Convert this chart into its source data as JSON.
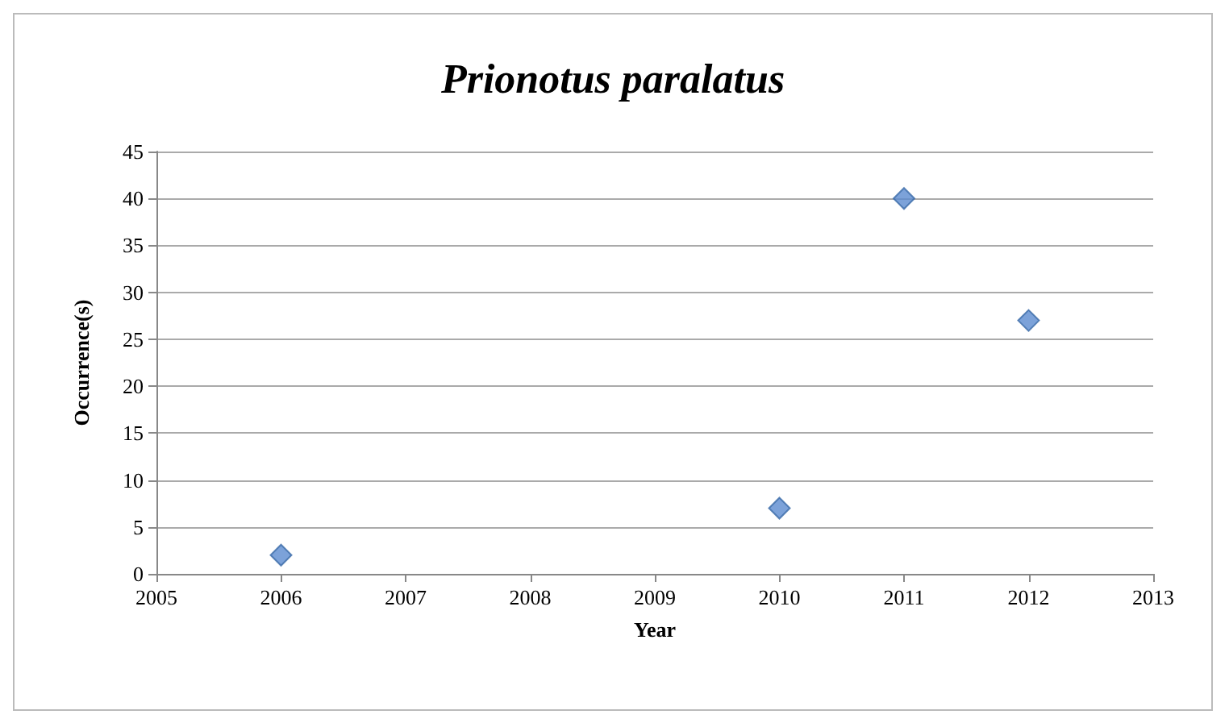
{
  "chart_data": {
    "type": "scatter",
    "title": "Prionotus paralatus",
    "xlabel": "Year",
    "ylabel": "Occurrence(s)",
    "x": [
      2006,
      2010,
      2011,
      2012
    ],
    "series": [
      {
        "color": "#5b8bd0",
        "values": [
          2,
          7,
          40,
          27
        ]
      }
    ],
    "xlim": [
      2005,
      2013
    ],
    "xticks": [
      2005,
      2006,
      2007,
      2008,
      2009,
      2010,
      2011,
      2012,
      2013
    ],
    "ylim": [
      0,
      45
    ],
    "yticks": [
      0,
      5,
      10,
      15,
      20,
      25,
      30,
      35,
      40,
      45
    ],
    "grid": "y",
    "marker": "diamond"
  }
}
